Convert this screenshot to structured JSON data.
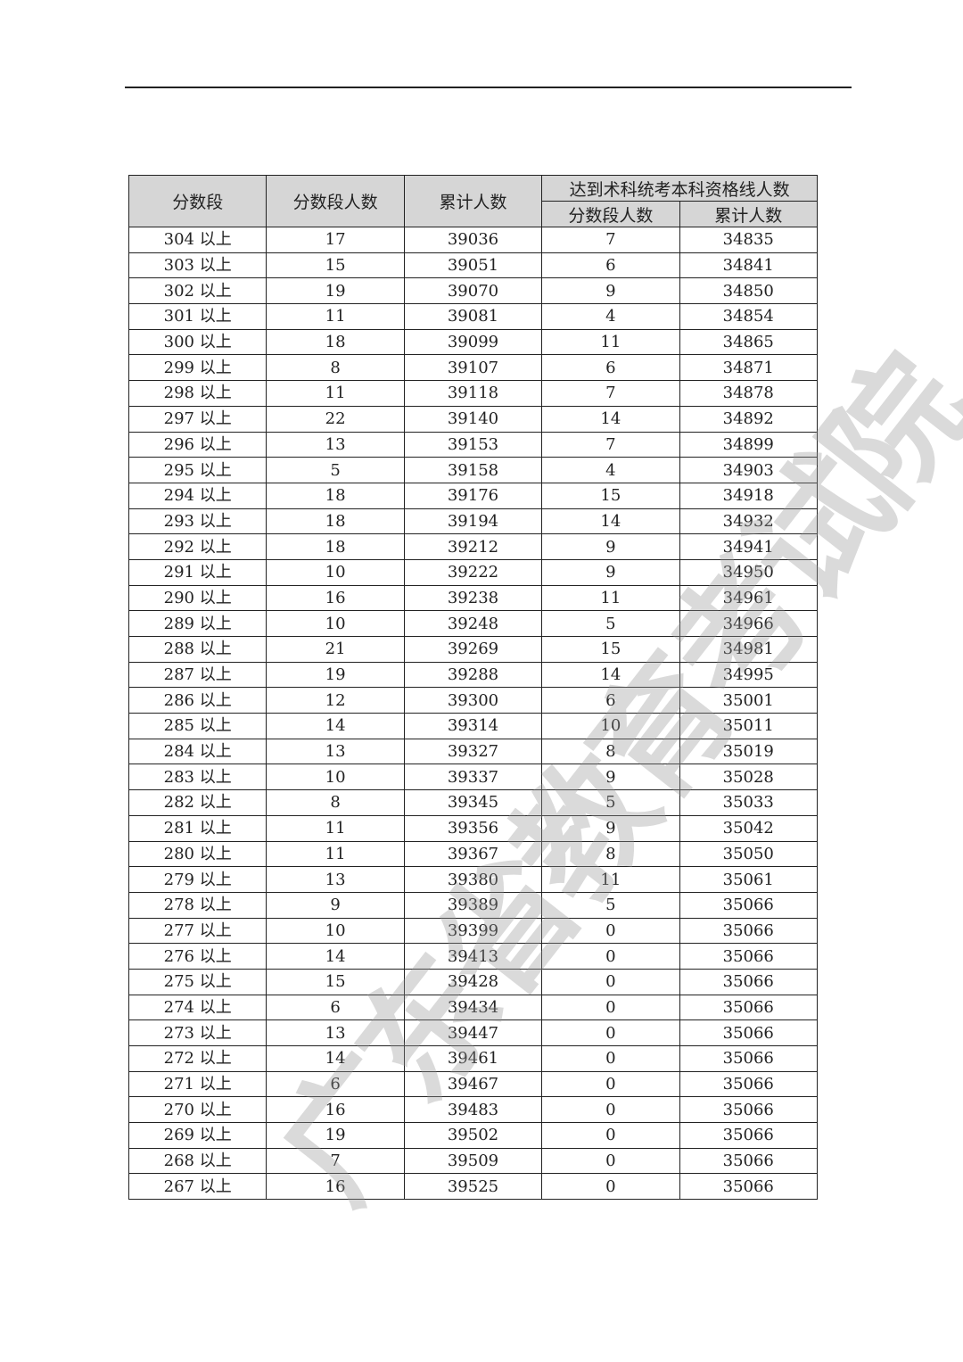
{
  "header": {
    "col_score": "分数段",
    "col_count": "分数段人数",
    "col_cumulative": "累计人数",
    "group_title": "达到术科统考本科资格线人数",
    "sub_count": "分数段人数",
    "sub_cumulative": "累计人数"
  },
  "watermark": "广东省教育考试院",
  "rows": [
    [
      "304 以上",
      "17",
      "39036",
      "7",
      "34835"
    ],
    [
      "303 以上",
      "15",
      "39051",
      "6",
      "34841"
    ],
    [
      "302 以上",
      "19",
      "39070",
      "9",
      "34850"
    ],
    [
      "301 以上",
      "11",
      "39081",
      "4",
      "34854"
    ],
    [
      "300 以上",
      "18",
      "39099",
      "11",
      "34865"
    ],
    [
      "299 以上",
      "8",
      "39107",
      "6",
      "34871"
    ],
    [
      "298 以上",
      "11",
      "39118",
      "7",
      "34878"
    ],
    [
      "297 以上",
      "22",
      "39140",
      "14",
      "34892"
    ],
    [
      "296 以上",
      "13",
      "39153",
      "7",
      "34899"
    ],
    [
      "295 以上",
      "5",
      "39158",
      "4",
      "34903"
    ],
    [
      "294 以上",
      "18",
      "39176",
      "15",
      "34918"
    ],
    [
      "293 以上",
      "18",
      "39194",
      "14",
      "34932"
    ],
    [
      "292 以上",
      "18",
      "39212",
      "9",
      "34941"
    ],
    [
      "291 以上",
      "10",
      "39222",
      "9",
      "34950"
    ],
    [
      "290 以上",
      "16",
      "39238",
      "11",
      "34961"
    ],
    [
      "289 以上",
      "10",
      "39248",
      "5",
      "34966"
    ],
    [
      "288 以上",
      "21",
      "39269",
      "15",
      "34981"
    ],
    [
      "287 以上",
      "19",
      "39288",
      "14",
      "34995"
    ],
    [
      "286 以上",
      "12",
      "39300",
      "6",
      "35001"
    ],
    [
      "285 以上",
      "14",
      "39314",
      "10",
      "35011"
    ],
    [
      "284 以上",
      "13",
      "39327",
      "8",
      "35019"
    ],
    [
      "283 以上",
      "10",
      "39337",
      "9",
      "35028"
    ],
    [
      "282 以上",
      "8",
      "39345",
      "5",
      "35033"
    ],
    [
      "281 以上",
      "11",
      "39356",
      "9",
      "35042"
    ],
    [
      "280 以上",
      "11",
      "39367",
      "8",
      "35050"
    ],
    [
      "279 以上",
      "13",
      "39380",
      "11",
      "35061"
    ],
    [
      "278 以上",
      "9",
      "39389",
      "5",
      "35066"
    ],
    [
      "277 以上",
      "10",
      "39399",
      "0",
      "35066"
    ],
    [
      "276 以上",
      "14",
      "39413",
      "0",
      "35066"
    ],
    [
      "275 以上",
      "15",
      "39428",
      "0",
      "35066"
    ],
    [
      "274 以上",
      "6",
      "39434",
      "0",
      "35066"
    ],
    [
      "273 以上",
      "13",
      "39447",
      "0",
      "35066"
    ],
    [
      "272 以上",
      "14",
      "39461",
      "0",
      "35066"
    ],
    [
      "271 以上",
      "6",
      "39467",
      "0",
      "35066"
    ],
    [
      "270 以上",
      "16",
      "39483",
      "0",
      "35066"
    ],
    [
      "269 以上",
      "19",
      "39502",
      "0",
      "35066"
    ],
    [
      "268 以上",
      "7",
      "39509",
      "0",
      "35066"
    ],
    [
      "267 以上",
      "16",
      "39525",
      "0",
      "35066"
    ]
  ]
}
